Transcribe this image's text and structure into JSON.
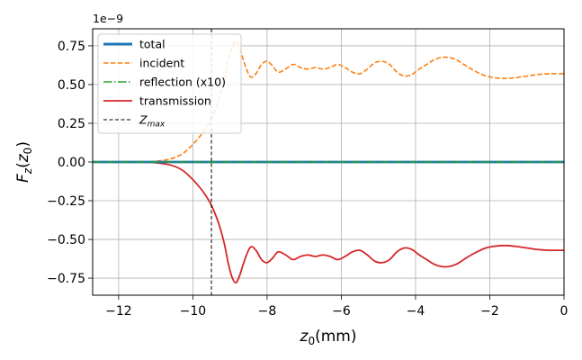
{
  "chart_data": {
    "type": "line",
    "xlabel": "z0(mm)",
    "xlabel_main": "z",
    "xlabel_sub": "0",
    "xlabel_tail": "(mm)",
    "ylabel": "Fz(z0)",
    "ylabel_main": "F",
    "ylabel_sub1": "z",
    "ylabel_paren_open": "(",
    "ylabel_var": "z",
    "ylabel_sub2": "0",
    "ylabel_paren_close": ")",
    "y_offset_text": "1e−9",
    "xlim": [
      -12.7,
      0
    ],
    "ylim": [
      -0.86,
      0.86
    ],
    "y_scale_factor": 1e-09,
    "xticks": [
      -12,
      -10,
      -8,
      -6,
      -4,
      -2,
      0
    ],
    "xtick_labels": [
      "−12",
      "−10",
      "−8",
      "−6",
      "−4",
      "−2",
      "0"
    ],
    "yticks": [
      -0.75,
      -0.5,
      -0.25,
      0.0,
      0.25,
      0.5,
      0.75
    ],
    "ytick_labels": [
      "−0.75",
      "−0.50",
      "−0.25",
      "0.00",
      "0.25",
      "0.50",
      "0.75"
    ],
    "grid": true,
    "legend_position": "top-left",
    "vline": {
      "x": -9.5,
      "label": "Z",
      "label_sub": "max",
      "color": "#000000",
      "style": "dashed"
    },
    "series": [
      {
        "name": "total",
        "color": "#1f77b4",
        "style": "solid",
        "x": [
          -12.7,
          0
        ],
        "y": [
          0,
          0
        ]
      },
      {
        "name": "incident",
        "color": "#ff7f0e",
        "style": "dashed",
        "x": [
          -12.7,
          -11.5,
          -11.0,
          -10.6,
          -10.3,
          -10.1,
          -9.9,
          -9.7,
          -9.5,
          -9.3,
          -9.15,
          -9.05,
          -8.95,
          -8.85,
          -8.75,
          -8.6,
          -8.45,
          -8.3,
          -8.15,
          -8.0,
          -7.85,
          -7.7,
          -7.5,
          -7.3,
          -7.1,
          -6.9,
          -6.7,
          -6.5,
          -6.3,
          -6.1,
          -5.9,
          -5.7,
          -5.5,
          -5.3,
          -5.1,
          -4.9,
          -4.7,
          -4.5,
          -4.3,
          -4.1,
          -3.9,
          -3.7,
          -3.5,
          -3.3,
          -3.1,
          -2.9,
          -2.7,
          -2.5,
          -2.3,
          -2.1,
          -1.9,
          -1.7,
          -1.5,
          -1.3,
          -1.0,
          -0.7,
          -0.4,
          0.0
        ],
        "y": [
          0.0,
          0.0,
          0.005,
          0.02,
          0.05,
          0.09,
          0.14,
          0.2,
          0.28,
          0.4,
          0.53,
          0.65,
          0.74,
          0.78,
          0.74,
          0.63,
          0.55,
          0.57,
          0.63,
          0.65,
          0.62,
          0.58,
          0.6,
          0.63,
          0.61,
          0.6,
          0.61,
          0.6,
          0.61,
          0.63,
          0.61,
          0.58,
          0.57,
          0.6,
          0.64,
          0.65,
          0.63,
          0.58,
          0.555,
          0.565,
          0.6,
          0.63,
          0.66,
          0.675,
          0.675,
          0.66,
          0.63,
          0.6,
          0.575,
          0.555,
          0.545,
          0.54,
          0.54,
          0.545,
          0.555,
          0.565,
          0.57,
          0.57
        ]
      },
      {
        "name": "reflection (x10)",
        "color": "#2ca02c",
        "style": "dashdot",
        "x": [
          -12.7,
          0
        ],
        "y": [
          0,
          0
        ]
      },
      {
        "name": "transmission",
        "color": "#d62728",
        "style": "solid",
        "x": [
          -12.7,
          -11.5,
          -11.0,
          -10.6,
          -10.3,
          -10.1,
          -9.9,
          -9.7,
          -9.5,
          -9.3,
          -9.15,
          -9.05,
          -8.95,
          -8.85,
          -8.75,
          -8.6,
          -8.45,
          -8.3,
          -8.15,
          -8.0,
          -7.85,
          -7.7,
          -7.5,
          -7.3,
          -7.1,
          -6.9,
          -6.7,
          -6.5,
          -6.3,
          -6.1,
          -5.9,
          -5.7,
          -5.5,
          -5.3,
          -5.1,
          -4.9,
          -4.7,
          -4.5,
          -4.3,
          -4.1,
          -3.9,
          -3.7,
          -3.5,
          -3.3,
          -3.1,
          -2.9,
          -2.7,
          -2.5,
          -2.3,
          -2.1,
          -1.9,
          -1.7,
          -1.5,
          -1.3,
          -1.0,
          -0.7,
          -0.4,
          0.0
        ],
        "y": [
          0.0,
          0.0,
          -0.005,
          -0.02,
          -0.05,
          -0.09,
          -0.14,
          -0.2,
          -0.28,
          -0.4,
          -0.53,
          -0.65,
          -0.74,
          -0.78,
          -0.74,
          -0.63,
          -0.55,
          -0.57,
          -0.63,
          -0.65,
          -0.62,
          -0.58,
          -0.6,
          -0.63,
          -0.61,
          -0.6,
          -0.61,
          -0.6,
          -0.61,
          -0.63,
          -0.61,
          -0.58,
          -0.57,
          -0.6,
          -0.64,
          -0.65,
          -0.63,
          -0.58,
          -0.555,
          -0.565,
          -0.6,
          -0.63,
          -0.66,
          -0.675,
          -0.675,
          -0.66,
          -0.63,
          -0.6,
          -0.575,
          -0.555,
          -0.545,
          -0.54,
          -0.54,
          -0.545,
          -0.555,
          -0.565,
          -0.57,
          -0.57
        ]
      }
    ]
  }
}
